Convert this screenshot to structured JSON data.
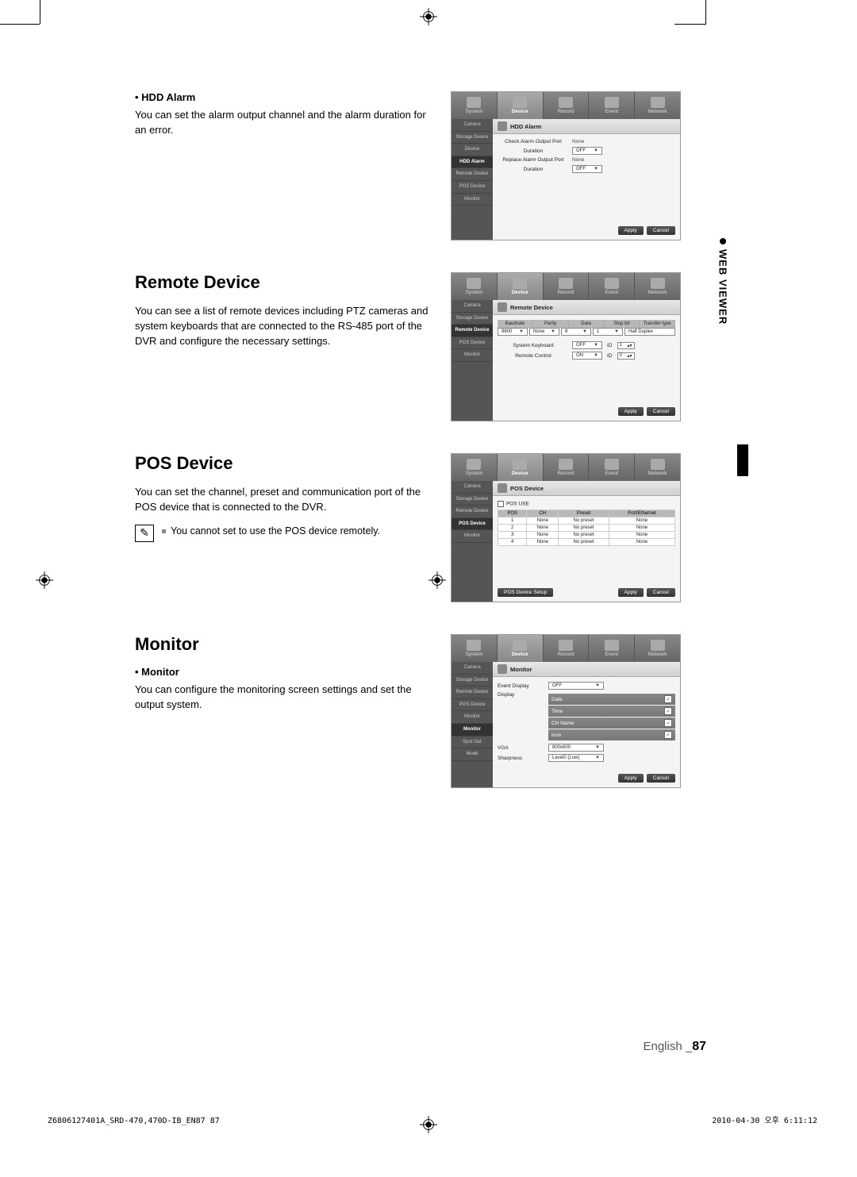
{
  "sideTab": {
    "label": "WEB VIEWER"
  },
  "sec1": {
    "sub": "• HDD Alarm",
    "body": "You can set the alarm output channel and the alarm duration for an error.",
    "shot": {
      "tabs": [
        "System",
        "Device",
        "Record",
        "Event",
        "Network"
      ],
      "activeTab": 1,
      "sidebar": [
        "Camera",
        "Storage Device",
        "Device",
        "HDD Alarm",
        "Remote Device",
        "POS Device",
        "Monitor"
      ],
      "selSide": 3,
      "title": "HDD Alarm",
      "rows": [
        {
          "k": "Check Alarm Output Port",
          "plain": "None"
        },
        {
          "k": "Duration",
          "sel": "OFF"
        },
        {
          "k": "Replace Alarm Output Port",
          "plain": "None"
        },
        {
          "k": "Duration",
          "sel": "OFF"
        }
      ],
      "btns": [
        "Apply",
        "Cancel"
      ]
    }
  },
  "sec2": {
    "h": "Remote Device",
    "body": "You can see a list of remote devices including PTZ cameras and system keyboards that are connected to the RS-485 port of the DVR and configure the necessary settings.",
    "shot": {
      "tabs": [
        "System",
        "Device",
        "Record",
        "Event",
        "Network"
      ],
      "activeTab": 1,
      "sidebar": [
        "Camera",
        "Storage Device",
        "Remote Device",
        "POS Device",
        "Monitor"
      ],
      "selSide": 2,
      "title": "Remote Device",
      "hdrs": [
        "Baudrate",
        "Parity",
        "Data",
        "Stop bit",
        "Transfer type"
      ],
      "hvals": [
        "9600",
        "None",
        "8",
        "1",
        "Half Duplex"
      ],
      "krows": [
        {
          "k": "System Keyboard",
          "sel": "OFF",
          "id": "ID",
          "n": "1"
        },
        {
          "k": "Remote Control",
          "sel": "ON",
          "id": "ID",
          "n": "0"
        }
      ],
      "btns": [
        "Apply",
        "Cancel"
      ]
    }
  },
  "sec3": {
    "h": "POS Device",
    "body": "You can set the channel, preset and communication port of the POS device that is connected to the DVR.",
    "note": "You cannot set to use the POS device remotely.",
    "shot": {
      "tabs": [
        "System",
        "Device",
        "Record",
        "Event",
        "Network"
      ],
      "activeTab": 1,
      "sidebar": [
        "Camera",
        "Storage Device",
        "Remote Device",
        "POS Device",
        "Monitor"
      ],
      "selSide": 3,
      "title": "POS Device",
      "chk": "POS USE",
      "cols": [
        "POS",
        "CH",
        "Preset",
        "Port/Ethernet"
      ],
      "rows": [
        [
          "1",
          "None",
          "No preset",
          "None"
        ],
        [
          "2",
          "None",
          "No preset",
          "None"
        ],
        [
          "3",
          "None",
          "No preset",
          "None"
        ],
        [
          "4",
          "None",
          "No preset",
          "None"
        ]
      ],
      "leftBtn": "POS Device Setup",
      "btns": [
        "Apply",
        "Cancel"
      ]
    }
  },
  "sec4": {
    "h": "Monitor",
    "sub": "• Monitor",
    "body": "You can configure the monitoring screen settings and set the output system.",
    "shot": {
      "tabs": [
        "System",
        "Device",
        "Record",
        "Event",
        "Network"
      ],
      "activeTab": 1,
      "sidebar": [
        "Camera",
        "Storage Device",
        "Remote Device",
        "POS Device",
        "Monitor",
        "Monitor",
        "Spot Out",
        "Mode"
      ],
      "selSide": 5,
      "title": "Monitor",
      "row1": {
        "k": "Event Display",
        "sel": "OFF"
      },
      "display": "Display",
      "chkItems": [
        "Date",
        "Time",
        "CH Name",
        "Icon"
      ],
      "row2": {
        "k": "VGA",
        "sel": "800x600"
      },
      "row3": {
        "k": "Sharpness",
        "sel": "Level0 (Low)"
      },
      "btns": [
        "Apply",
        "Cancel"
      ]
    }
  },
  "pageFoot": {
    "lang": "English",
    "num": "87"
  },
  "printL": "Z6806127401A_SRD-470,470D-IB_EN87   87",
  "printR": "2010-04-30   오후 6:11:12"
}
